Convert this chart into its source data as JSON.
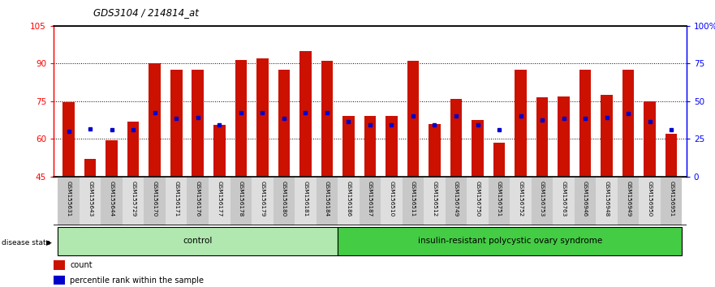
{
  "title": "GDS3104 / 214814_at",
  "samples": [
    "GSM155631",
    "GSM155643",
    "GSM155644",
    "GSM155729",
    "GSM156170",
    "GSM156171",
    "GSM156176",
    "GSM156177",
    "GSM156178",
    "GSM156179",
    "GSM156180",
    "GSM156181",
    "GSM156184",
    "GSM156186",
    "GSM156187",
    "GSM156510",
    "GSM156511",
    "GSM156512",
    "GSM156749",
    "GSM156750",
    "GSM156751",
    "GSM156752",
    "GSM156753",
    "GSM156763",
    "GSM156946",
    "GSM156948",
    "GSM156949",
    "GSM156950",
    "GSM156951"
  ],
  "bar_values": [
    74.5,
    52.0,
    59.5,
    67.0,
    90.0,
    87.5,
    87.5,
    65.5,
    91.5,
    92.0,
    87.5,
    95.0,
    91.0,
    69.0,
    69.0,
    69.0,
    91.0,
    66.0,
    76.0,
    67.5,
    58.5,
    87.5,
    76.5,
    77.0,
    87.5,
    77.5,
    87.5,
    75.0,
    62.0
  ],
  "blue_values": [
    63.0,
    64.0,
    63.5,
    63.5,
    70.5,
    68.0,
    68.5,
    65.5,
    70.5,
    70.5,
    68.0,
    70.5,
    70.5,
    67.0,
    65.5,
    65.5,
    69.0,
    65.5,
    69.0,
    65.5,
    63.5,
    69.0,
    67.5,
    68.0,
    68.0,
    68.5,
    70.0,
    67.0,
    63.5
  ],
  "group_labels": [
    "control",
    "insulin-resistant polycystic ovary syndrome"
  ],
  "control_count": 13,
  "disease_count": 16,
  "ylim_left": [
    45,
    105
  ],
  "ylim_right": [
    0,
    100
  ],
  "yticks_left": [
    45,
    60,
    75,
    90,
    105
  ],
  "yticks_right": [
    0,
    25,
    50,
    75,
    100
  ],
  "ytick_right_labels": [
    "0",
    "25",
    "50",
    "75",
    "100%"
  ],
  "bar_color": "#cc1100",
  "blue_color": "#0000cc",
  "label_count": "count",
  "label_pct": "percentile rank within the sample"
}
